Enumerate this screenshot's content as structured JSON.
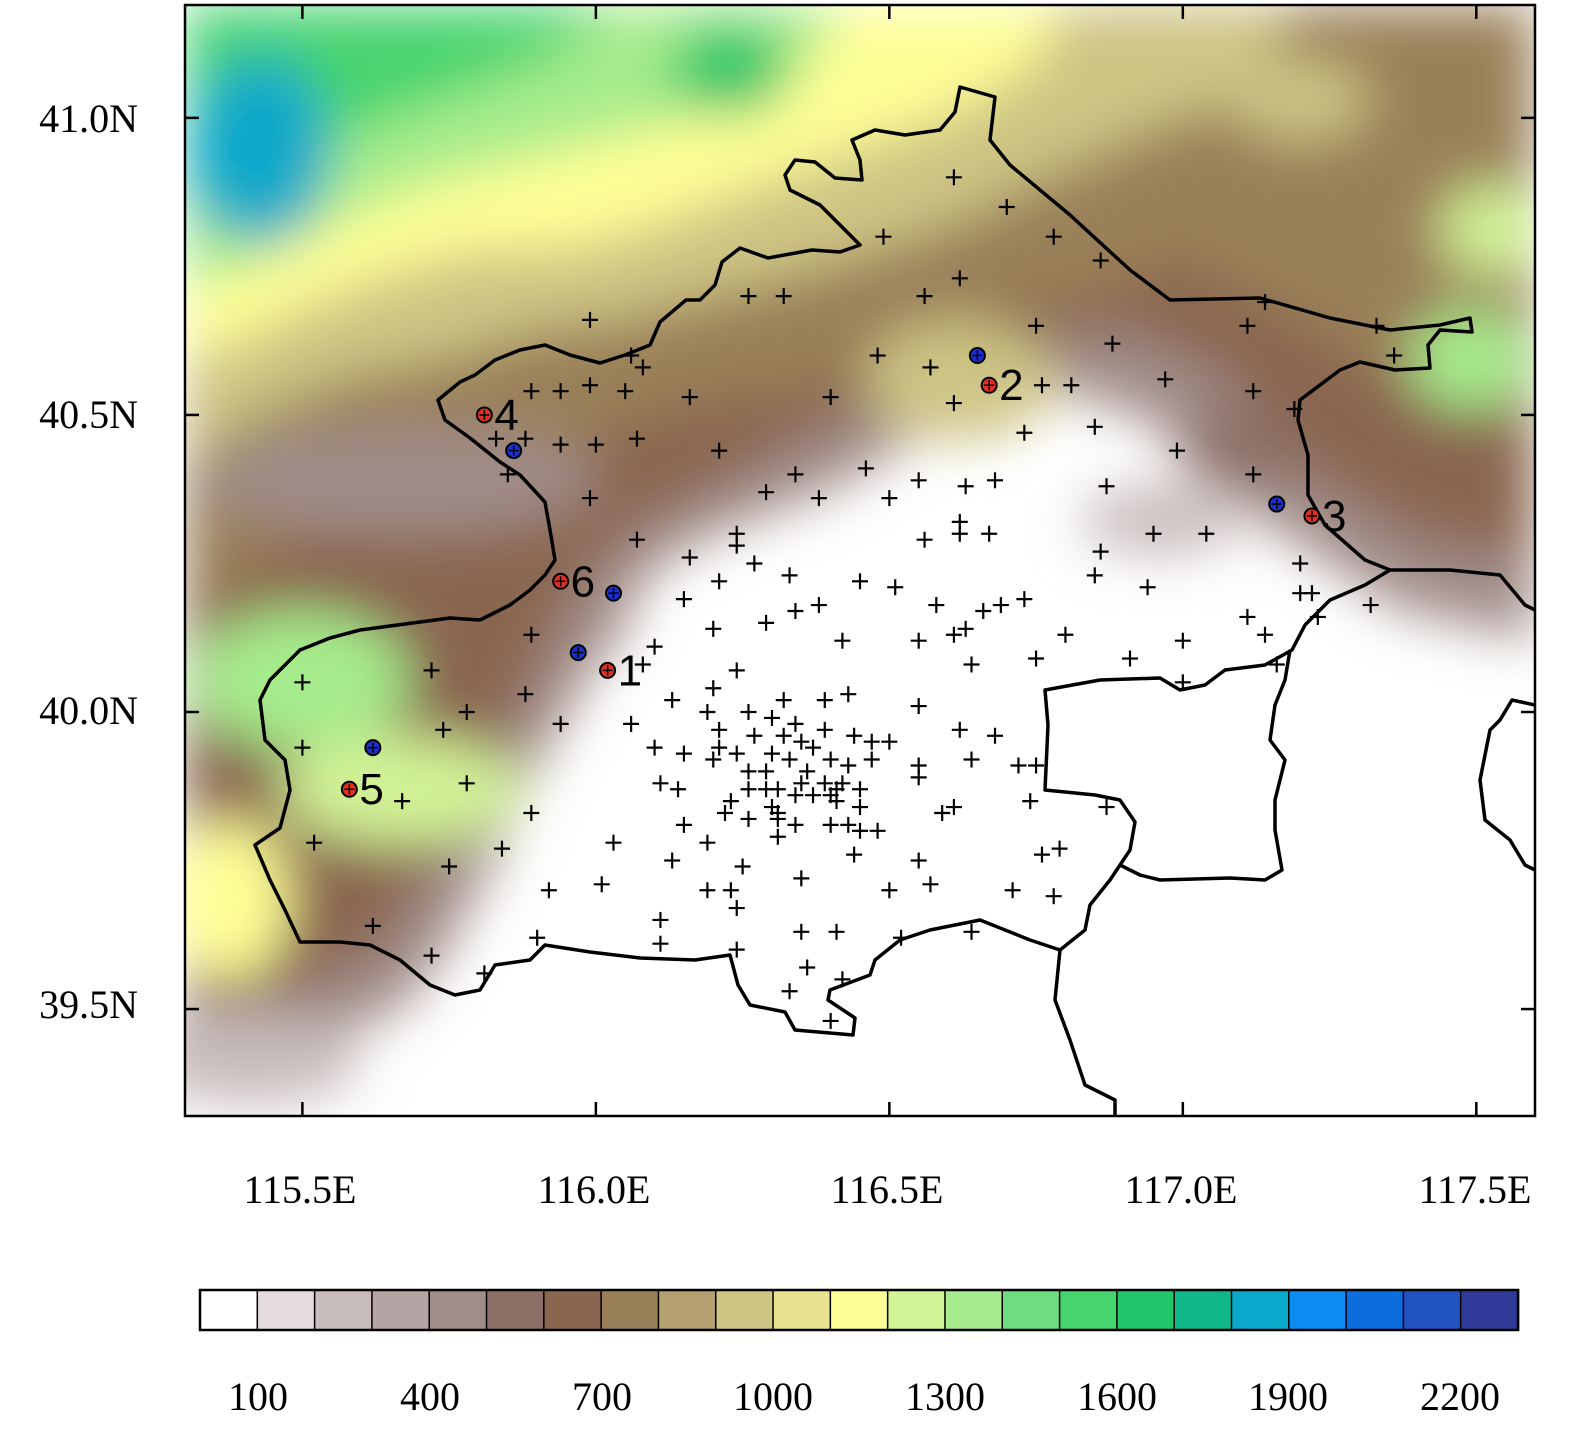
{
  "map": {
    "x_ticks": [
      "115.5E",
      "116.0E",
      "116.5E",
      "117.0E",
      "117.5E"
    ],
    "y_ticks": [
      "41.0N",
      "40.5N",
      "40.0N",
      "39.5N"
    ],
    "x_range": [
      115.3,
      117.6
    ],
    "y_range": [
      39.32,
      41.19
    ],
    "x_tick_values": [
      115.5,
      116.0,
      116.5,
      117.0,
      117.5
    ],
    "y_tick_values": [
      41.0,
      40.5,
      40.0,
      39.5
    ],
    "legend": "horizontal color bar below map",
    "palette": [
      "#ffffff",
      "#e4dcdc",
      "#c8bcbc",
      "#b4a4a4",
      "#a08c88",
      "#8c7068",
      "#8a6650",
      "#9a8058",
      "#b4a070",
      "#cec484",
      "#e8e28e",
      "#fefe96",
      "#d2f396",
      "#a6ec8c",
      "#6edc80",
      "#46d46e",
      "#22c66a",
      "#10b88a",
      "#0aa8ca",
      "#0a8cf0",
      "#0c6ede",
      "#2052c0",
      "#303a98"
    ]
  },
  "colorbar": {
    "labels": [
      "100",
      "400",
      "700",
      "1000",
      "1300",
      "1600",
      "1900",
      "2200"
    ]
  },
  "sites": [
    {
      "label": "1",
      "red": [
        116.02,
        40.07
      ],
      "blue": [
        115.97,
        40.1
      ]
    },
    {
      "label": "2",
      "red": [
        116.67,
        40.55
      ],
      "blue": [
        116.65,
        40.6
      ]
    },
    {
      "label": "3",
      "red": [
        117.22,
        40.33
      ],
      "blue": [
        117.16,
        40.35
      ]
    },
    {
      "label": "4",
      "red": [
        115.81,
        40.5
      ],
      "blue": [
        115.86,
        40.44
      ]
    },
    {
      "label": "5",
      "red": [
        115.58,
        39.87
      ],
      "blue": [
        115.62,
        39.94
      ]
    },
    {
      "label": "6",
      "red": [
        115.94,
        40.22
      ],
      "blue": [
        116.03,
        40.2
      ]
    }
  ],
  "stations": [
    [
      116.61,
      40.9
    ],
    [
      116.7,
      40.85
    ],
    [
      116.78,
      40.8
    ],
    [
      116.49,
      40.8
    ],
    [
      116.86,
      40.76
    ],
    [
      116.62,
      40.73
    ],
    [
      115.99,
      40.66
    ],
    [
      116.06,
      40.6
    ],
    [
      116.08,
      40.58
    ],
    [
      116.26,
      40.7
    ],
    [
      116.32,
      40.7
    ],
    [
      116.56,
      40.7
    ],
    [
      116.75,
      40.65
    ],
    [
      116.88,
      40.62
    ],
    [
      116.48,
      40.6
    ],
    [
      116.57,
      40.58
    ],
    [
      116.76,
      40.55
    ],
    [
      116.81,
      40.55
    ],
    [
      116.97,
      40.56
    ],
    [
      117.11,
      40.65
    ],
    [
      117.14,
      40.69
    ],
    [
      117.33,
      40.65
    ],
    [
      117.36,
      40.6
    ],
    [
      117.12,
      40.54
    ],
    [
      117.19,
      40.51
    ],
    [
      116.73,
      40.47
    ],
    [
      116.85,
      40.48
    ],
    [
      115.89,
      40.54
    ],
    [
      115.94,
      40.54
    ],
    [
      115.99,
      40.55
    ],
    [
      116.05,
      40.54
    ],
    [
      116.16,
      40.53
    ],
    [
      116.4,
      40.53
    ],
    [
      116.61,
      40.52
    ],
    [
      116.0,
      40.45
    ],
    [
      115.94,
      40.45
    ],
    [
      115.83,
      40.46
    ],
    [
      115.88,
      40.46
    ],
    [
      115.85,
      40.4
    ],
    [
      116.07,
      40.46
    ],
    [
      116.21,
      40.44
    ],
    [
      116.34,
      40.4
    ],
    [
      116.46,
      40.41
    ],
    [
      116.55,
      40.39
    ],
    [
      116.68,
      40.39
    ],
    [
      116.63,
      40.38
    ],
    [
      116.87,
      40.38
    ],
    [
      116.99,
      40.44
    ],
    [
      117.12,
      40.4
    ],
    [
      115.99,
      40.36
    ],
    [
      116.29,
      40.37
    ],
    [
      116.38,
      40.36
    ],
    [
      116.5,
      40.36
    ],
    [
      116.24,
      40.3
    ],
    [
      116.24,
      40.28
    ],
    [
      116.27,
      40.25
    ],
    [
      116.07,
      40.29
    ],
    [
      116.16,
      40.26
    ],
    [
      116.21,
      40.22
    ],
    [
      116.33,
      40.23
    ],
    [
      116.45,
      40.22
    ],
    [
      116.51,
      40.21
    ],
    [
      116.56,
      40.29
    ],
    [
      116.62,
      40.3
    ],
    [
      116.62,
      40.32
    ],
    [
      116.67,
      40.3
    ],
    [
      116.86,
      40.27
    ],
    [
      116.85,
      40.23
    ],
    [
      116.95,
      40.3
    ],
    [
      117.04,
      40.3
    ],
    [
      116.94,
      40.21
    ],
    [
      117.2,
      40.25
    ],
    [
      117.22,
      40.2
    ],
    [
      117.2,
      40.2
    ],
    [
      117.11,
      40.16
    ],
    [
      117.23,
      40.16
    ],
    [
      117.32,
      40.18
    ],
    [
      116.15,
      40.19
    ],
    [
      116.34,
      40.17
    ],
    [
      116.38,
      40.18
    ],
    [
      116.58,
      40.18
    ],
    [
      116.66,
      40.17
    ],
    [
      116.69,
      40.18
    ],
    [
      116.73,
      40.19
    ],
    [
      115.89,
      40.13
    ],
    [
      116.1,
      40.11
    ],
    [
      116.2,
      40.14
    ],
    [
      116.29,
      40.15
    ],
    [
      116.42,
      40.12
    ],
    [
      116.55,
      40.12
    ],
    [
      116.61,
      40.13
    ],
    [
      116.63,
      40.14
    ],
    [
      116.8,
      40.13
    ],
    [
      116.75,
      40.09
    ],
    [
      116.91,
      40.09
    ],
    [
      117.0,
      40.12
    ],
    [
      117.14,
      40.13
    ],
    [
      117.16,
      40.08
    ],
    [
      117.0,
      40.05
    ],
    [
      116.64,
      40.08
    ],
    [
      116.08,
      40.08
    ],
    [
      116.24,
      40.07
    ],
    [
      115.72,
      40.07
    ],
    [
      115.5,
      40.05
    ],
    [
      115.88,
      40.03
    ],
    [
      116.2,
      40.04
    ],
    [
      116.13,
      40.02
    ],
    [
      116.19,
      40.0
    ],
    [
      116.26,
      40.0
    ],
    [
      116.32,
      40.02
    ],
    [
      116.39,
      40.02
    ],
    [
      116.43,
      40.03
    ],
    [
      116.55,
      40.01
    ],
    [
      115.78,
      40.0
    ],
    [
      115.94,
      39.98
    ],
    [
      116.06,
      39.98
    ],
    [
      116.21,
      39.97
    ],
    [
      116.3,
      39.99
    ],
    [
      116.34,
      39.98
    ],
    [
      116.39,
      39.97
    ],
    [
      116.44,
      39.96
    ],
    [
      116.27,
      39.96
    ],
    [
      116.32,
      39.96
    ],
    [
      116.35,
      39.95
    ],
    [
      116.47,
      39.95
    ],
    [
      116.1,
      39.94
    ],
    [
      116.15,
      39.93
    ],
    [
      116.21,
      39.94
    ],
    [
      116.24,
      39.93
    ],
    [
      116.3,
      39.93
    ],
    [
      116.37,
      39.94
    ],
    [
      116.5,
      39.95
    ],
    [
      115.5,
      39.94
    ],
    [
      115.74,
      39.97
    ],
    [
      116.62,
      39.97
    ],
    [
      116.68,
      39.96
    ],
    [
      116.64,
      39.92
    ],
    [
      116.72,
      39.91
    ],
    [
      116.75,
      39.91
    ],
    [
      116.2,
      39.92
    ],
    [
      116.26,
      39.9
    ],
    [
      116.29,
      39.9
    ],
    [
      116.33,
      39.92
    ],
    [
      116.36,
      39.9
    ],
    [
      116.4,
      39.92
    ],
    [
      116.43,
      39.91
    ],
    [
      116.47,
      39.92
    ],
    [
      116.55,
      39.91
    ],
    [
      115.78,
      39.88
    ],
    [
      116.11,
      39.88
    ],
    [
      116.14,
      39.87
    ],
    [
      116.26,
      39.87
    ],
    [
      116.29,
      39.87
    ],
    [
      116.31,
      39.87
    ],
    [
      116.35,
      39.88
    ],
    [
      116.39,
      39.88
    ],
    [
      116.41,
      39.87
    ],
    [
      116.45,
      39.87
    ],
    [
      116.55,
      39.89
    ],
    [
      116.23,
      39.85
    ],
    [
      116.3,
      39.84
    ],
    [
      116.34,
      39.86
    ],
    [
      116.37,
      39.86
    ],
    [
      116.4,
      39.86
    ],
    [
      116.42,
      39.88
    ],
    [
      115.67,
      39.85
    ],
    [
      115.89,
      39.83
    ],
    [
      116.41,
      39.85
    ],
    [
      116.45,
      39.84
    ],
    [
      116.22,
      39.83
    ],
    [
      116.31,
      39.83
    ],
    [
      116.59,
      39.83
    ],
    [
      116.61,
      39.84
    ],
    [
      116.74,
      39.85
    ],
    [
      116.87,
      39.84
    ],
    [
      116.15,
      39.81
    ],
    [
      116.26,
      39.82
    ],
    [
      116.31,
      39.82
    ],
    [
      116.34,
      39.81
    ],
    [
      116.4,
      39.81
    ],
    [
      116.43,
      39.81
    ],
    [
      116.45,
      39.8
    ],
    [
      116.48,
      39.8
    ],
    [
      115.52,
      39.78
    ],
    [
      116.03,
      39.78
    ],
    [
      116.19,
      39.78
    ],
    [
      116.31,
      39.79
    ],
    [
      116.44,
      39.76
    ],
    [
      115.84,
      39.77
    ],
    [
      116.76,
      39.76
    ],
    [
      116.79,
      39.77
    ],
    [
      116.13,
      39.75
    ],
    [
      116.25,
      39.74
    ],
    [
      116.55,
      39.75
    ],
    [
      115.75,
      39.74
    ],
    [
      116.35,
      39.72
    ],
    [
      116.01,
      39.71
    ],
    [
      115.92,
      39.7
    ],
    [
      116.19,
      39.7
    ],
    [
      116.23,
      39.7
    ],
    [
      116.5,
      39.7
    ],
    [
      116.57,
      39.71
    ],
    [
      116.71,
      39.7
    ],
    [
      116.78,
      39.69
    ],
    [
      116.24,
      39.67
    ],
    [
      116.11,
      39.65
    ],
    [
      115.62,
      39.64
    ],
    [
      116.35,
      39.63
    ],
    [
      116.41,
      39.63
    ],
    [
      116.52,
      39.62
    ],
    [
      116.64,
      39.63
    ],
    [
      115.9,
      39.62
    ],
    [
      116.11,
      39.61
    ],
    [
      116.24,
      39.6
    ],
    [
      115.72,
      39.59
    ],
    [
      116.36,
      39.57
    ],
    [
      115.81,
      39.56
    ],
    [
      116.42,
      39.55
    ],
    [
      116.33,
      39.53
    ],
    [
      116.4,
      39.48
    ]
  ]
}
